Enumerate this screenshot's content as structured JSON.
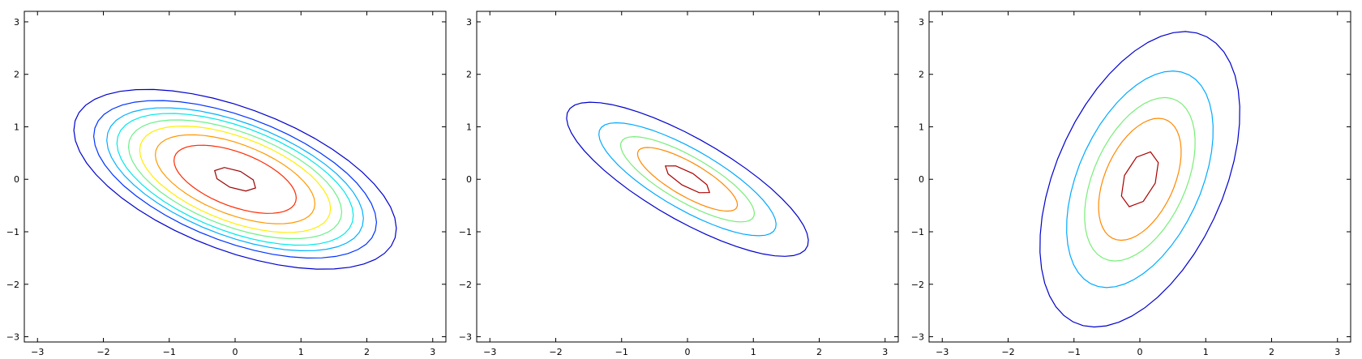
{
  "chart_data": [
    {
      "type": "contour",
      "xlim": [
        -3.2,
        3.2
      ],
      "ylim": [
        -3.1,
        3.2
      ],
      "xticks": [
        -3,
        -2,
        -1,
        0,
        1,
        2,
        3
      ],
      "yticks": [
        -3,
        -2,
        -1,
        0,
        1,
        2,
        3
      ],
      "xtick_labels": [
        "−3",
        "−2",
        "−1",
        "0",
        "1",
        "2",
        "3"
      ],
      "ytick_labels": [
        "−3",
        "−2",
        "−1",
        "0",
        "1",
        "2",
        "3"
      ],
      "grid": false,
      "distribution": {
        "mean": [
          0,
          0
        ],
        "sigma_x": 1.0,
        "sigma_y": 0.7,
        "correlation": -0.55
      },
      "contour_levels": [
        {
          "value": 0.05,
          "color": "#0000cc"
        },
        {
          "value": 0.1,
          "color": "#0033ff"
        },
        {
          "value": 0.15,
          "color": "#00b0ff"
        },
        {
          "value": 0.2,
          "color": "#00e8e8"
        },
        {
          "value": 0.27,
          "color": "#6df08a"
        },
        {
          "value": 0.35,
          "color": "#ffee00"
        },
        {
          "value": 0.48,
          "color": "#ff9900"
        },
        {
          "value": 0.65,
          "color": "#ff2a00"
        },
        {
          "value": 0.95,
          "color": "#990000"
        }
      ]
    },
    {
      "type": "contour",
      "xlim": [
        -3.2,
        3.2
      ],
      "ylim": [
        -3.1,
        3.2
      ],
      "xticks": [
        -3,
        -2,
        -1,
        0,
        1,
        2,
        3
      ],
      "yticks": [
        -3,
        -2,
        -1,
        0,
        1,
        2,
        3
      ],
      "xtick_labels": [
        "−3",
        "−2",
        "−1",
        "0",
        "1",
        "2",
        "3"
      ],
      "ytick_labels": [
        "−3",
        "−2",
        "−1",
        "0",
        "1",
        "2",
        "3"
      ],
      "grid": false,
      "distribution": {
        "mean": [
          0,
          0
        ],
        "sigma_x": 0.75,
        "sigma_y": 0.6,
        "correlation": -0.8
      },
      "contour_levels": [
        {
          "value": 0.05,
          "color": "#0000cc"
        },
        {
          "value": 0.2,
          "color": "#00aaff"
        },
        {
          "value": 0.4,
          "color": "#77ee77"
        },
        {
          "value": 0.6,
          "color": "#ff8800"
        },
        {
          "value": 0.9,
          "color": "#aa0000"
        }
      ]
    },
    {
      "type": "contour",
      "xlim": [
        -3.2,
        3.2
      ],
      "ylim": [
        -3.1,
        3.2
      ],
      "xticks": [
        -3,
        -2,
        -1,
        0,
        1,
        2,
        3
      ],
      "yticks": [
        -3,
        -2,
        -1,
        0,
        1,
        2,
        3
      ],
      "xtick_labels": [
        "−3",
        "−2",
        "−1",
        "0",
        "1",
        "2",
        "3"
      ],
      "ytick_labels": [
        "−3",
        "−2",
        "−1",
        "0",
        "1",
        "2",
        "3"
      ],
      "grid": false,
      "distribution": {
        "mean": [
          0,
          0
        ],
        "sigma_x": 0.62,
        "sigma_y": 1.15,
        "correlation": 0.45
      },
      "contour_levels": [
        {
          "value": 0.05,
          "color": "#0000cc"
        },
        {
          "value": 0.2,
          "color": "#00aaff"
        },
        {
          "value": 0.4,
          "color": "#77ee77"
        },
        {
          "value": 0.6,
          "color": "#ff8800"
        },
        {
          "value": 0.9,
          "color": "#aa0000"
        }
      ]
    }
  ]
}
